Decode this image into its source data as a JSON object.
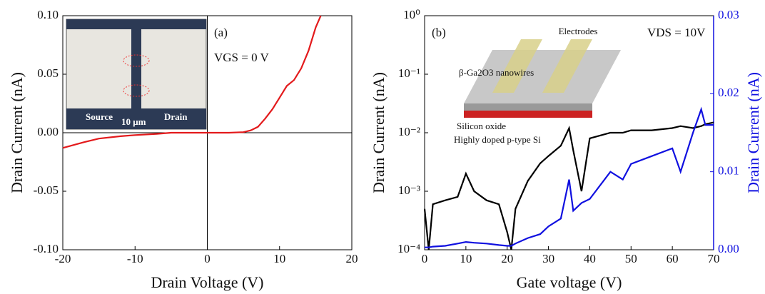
{
  "chart_data": [
    {
      "type": "line",
      "xlabel": "Drain Voltage (V)",
      "ylabel": "Drain Current (nA)",
      "xlim": [
        -20,
        20
      ],
      "xticks": [
        -20,
        -10,
        0,
        10,
        20
      ],
      "ylim": [
        -0.1,
        0.1
      ],
      "yticks": [
        {
          "value": -0.1,
          "label": "-0.10"
        },
        -0.05,
        {
          "value": 0,
          "label": "0.00"
        },
        0.05,
        {
          "value": 0.1,
          "label": "0.10"
        }
      ],
      "x": [
        -20,
        -17,
        -15,
        -12,
        -10,
        -7,
        -5,
        -2,
        0,
        3,
        5,
        6,
        7,
        8,
        9,
        10,
        11,
        12,
        13,
        14,
        15,
        15.7
      ],
      "series": [
        {
          "color": "#e31a1c",
          "values": [
            -0.013,
            -0.008,
            -0.005,
            -0.003,
            -0.002,
            -0.001,
            0,
            0,
            0,
            0,
            0.0005,
            0.002,
            0.005,
            0.012,
            0.02,
            0.03,
            0.04,
            0.045,
            0.055,
            0.07,
            0.09,
            0.1
          ]
        }
      ],
      "annotations": [
        "(a)",
        "VGS = 0 V",
        "Source",
        "Drain",
        "10 μm"
      ]
    },
    {
      "type": "line",
      "xlabel": "Gate voltage (V)",
      "ylabel": "Drain Current (nA)",
      "y2label": "Drain Current (nA)",
      "ylog": true,
      "xlim": [
        0,
        70
      ],
      "xticks": [
        0,
        10,
        20,
        30,
        40,
        50,
        60,
        70
      ],
      "ylim": [
        0.0001,
        1
      ],
      "yticks": [
        {
          "value": 0.0001,
          "label": "10⁻⁴"
        },
        {
          "value": 0.001,
          "label": "10⁻³"
        },
        {
          "value": 0.01,
          "label": "10⁻²"
        },
        {
          "value": 0.1,
          "label": "10⁻¹"
        },
        {
          "value": 1,
          "label": "10⁰"
        }
      ],
      "y2lim": [
        0,
        0.03
      ],
      "y2ticks": [
        {
          "value": 0,
          "label": "0.00"
        },
        0.01,
        0.02,
        0.03
      ],
      "y2color": "#1010e0",
      "x": [
        0,
        1,
        2,
        5,
        8,
        10,
        12,
        15,
        18,
        20,
        21,
        22,
        25,
        28,
        30,
        33,
        35,
        36,
        38,
        40,
        45,
        48,
        50,
        55,
        60,
        62,
        65,
        67,
        68,
        70
      ],
      "series": [
        {
          "color": "#000000",
          "values": [
            0.0005,
            0.0001,
            0.0006,
            0.0007,
            0.0008,
            0.002,
            0.001,
            0.0007,
            0.0006,
            0.0002,
            0.0001,
            0.0005,
            0.0015,
            0.003,
            0.004,
            0.006,
            0.012,
            0.005,
            0.001,
            0.008,
            0.01,
            0.01,
            0.011,
            0.011,
            0.012,
            0.013,
            0.012,
            0.013,
            0.014,
            0.015
          ]
        },
        {
          "color": "#1010e0",
          "axis": "y2",
          "values": [
            0.0003,
            0.0003,
            0.0004,
            0.0005,
            0.0008,
            0.001,
            0.0009,
            0.0008,
            0.0006,
            0.0005,
            0.0005,
            0.0008,
            0.0015,
            0.002,
            0.003,
            0.004,
            0.009,
            0.005,
            0.006,
            0.0065,
            0.01,
            0.009,
            0.011,
            0.012,
            0.013,
            0.01,
            0.015,
            0.018,
            0.016,
            0.016
          ]
        }
      ],
      "annotations": [
        "(b)",
        "VDS = 10V",
        "Electrodes",
        "β-Ga2O3 nanowires",
        "Silicon oxide",
        "Highly doped p-type Si"
      ]
    }
  ]
}
